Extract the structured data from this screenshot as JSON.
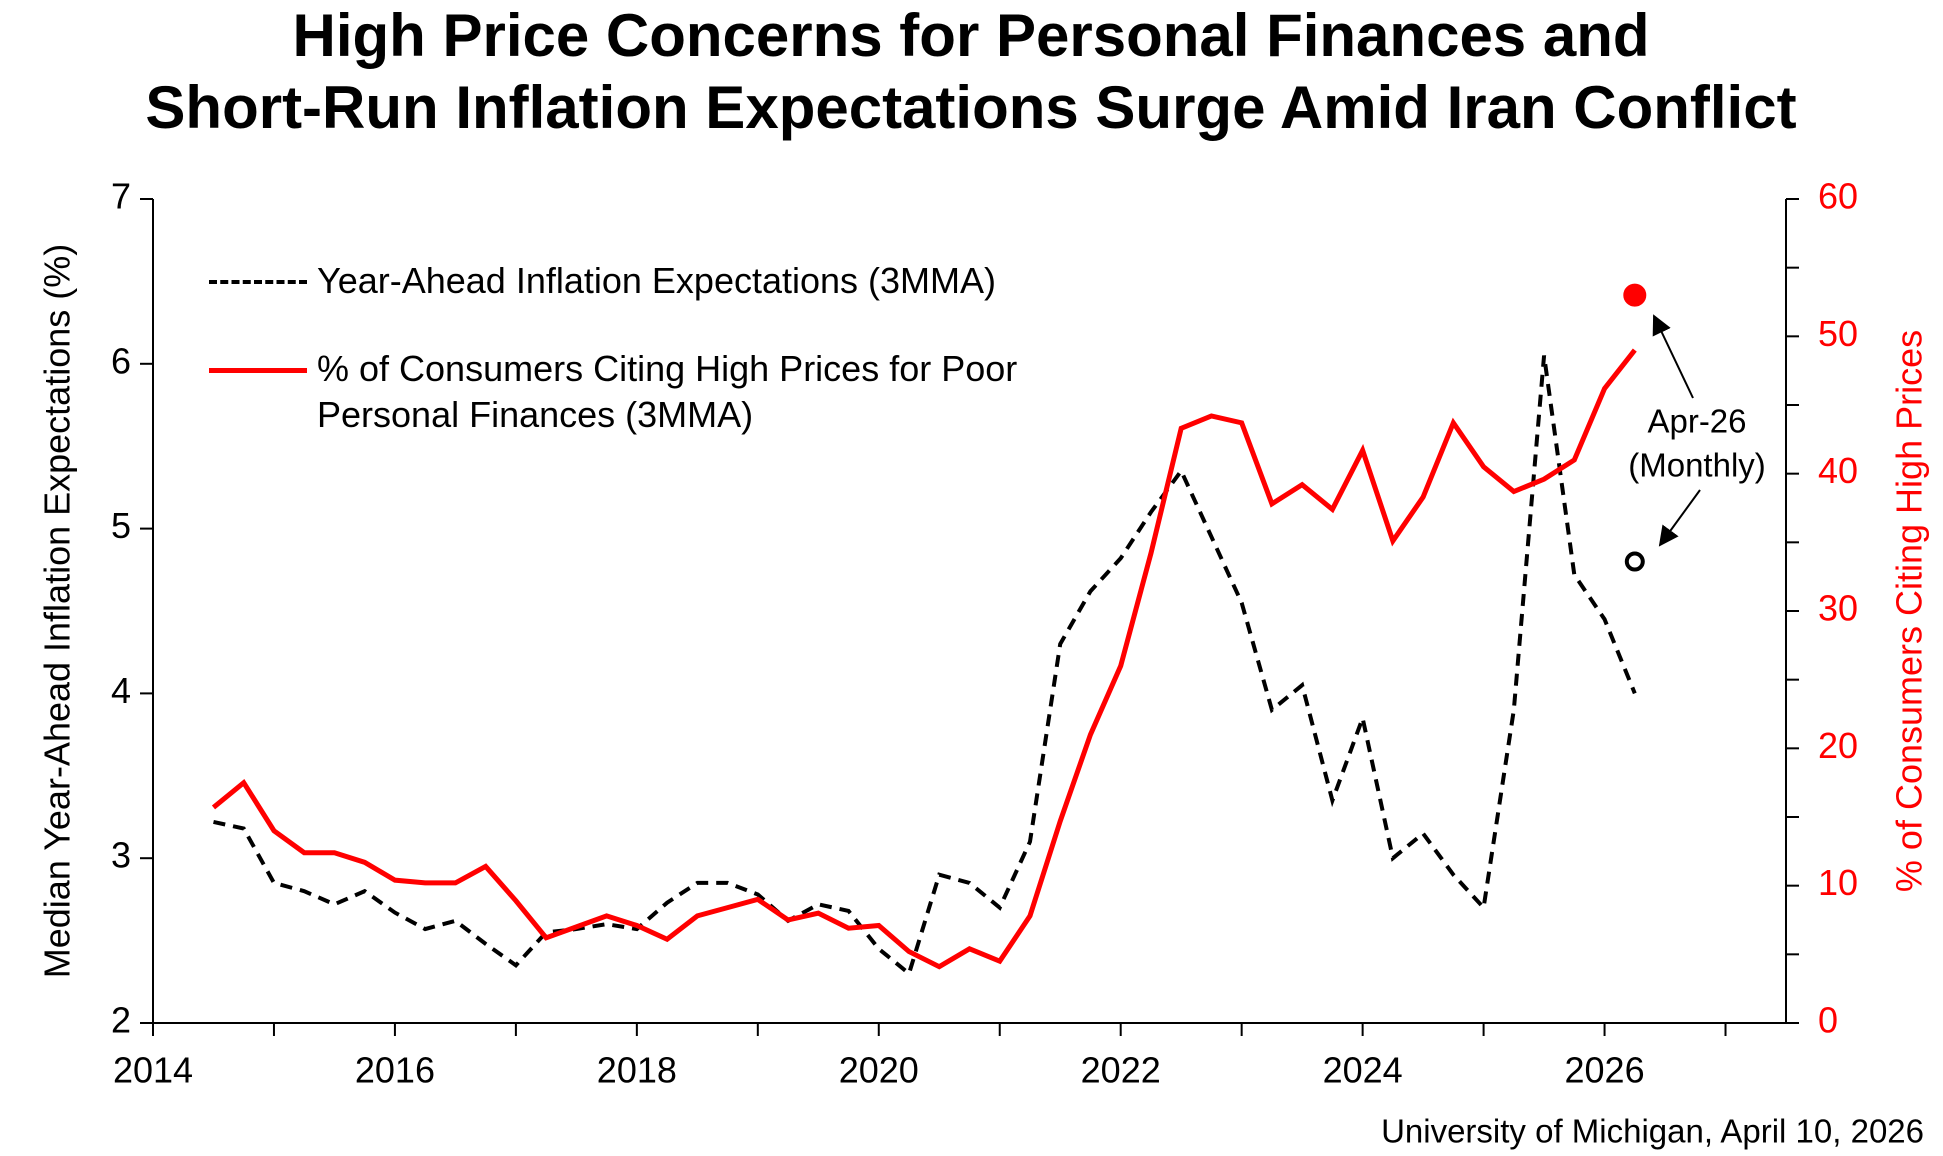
{
  "chart_data": {
    "type": "line",
    "title": [
      "High Price Concerns for Personal Finances and",
      "Short-Run Inflation Expectations Surge Amid Iran Conflict"
    ],
    "ylabel": "Median Year-Ahead Inflation Expectations (%)",
    "y2label": "% of Consumers Citing High Prices",
    "source": "University of Michigan, April 10, 2026",
    "xlim": [
      2014,
      2027.5
    ],
    "xticks": [
      2014,
      2016,
      2018,
      2020,
      2022,
      2024,
      2026
    ],
    "xminorticks": [
      2015,
      2017,
      2019,
      2021,
      2023,
      2025,
      2027
    ],
    "ylim": [
      2,
      7
    ],
    "yticks": [
      2,
      3,
      4,
      5,
      6,
      7
    ],
    "y2lim": [
      0,
      60
    ],
    "y2ticks": [
      0,
      10,
      20,
      30,
      40,
      50,
      60
    ],
    "y2minorticks": [
      5,
      15,
      25,
      35,
      45,
      55
    ],
    "x": [
      2014.5,
      2014.75,
      2015,
      2015.25,
      2015.5,
      2015.75,
      2016,
      2016.25,
      2016.5,
      2016.75,
      2017,
      2017.25,
      2017.5,
      2017.75,
      2018,
      2018.25,
      2018.5,
      2018.75,
      2019,
      2019.25,
      2019.5,
      2019.75,
      2020,
      2020.25,
      2020.5,
      2020.75,
      2021,
      2021.25,
      2021.5,
      2021.75,
      2022,
      2022.25,
      2022.5,
      2022.75,
      2023,
      2023.25,
      2023.5,
      2023.75,
      2024,
      2024.25,
      2024.5,
      2024.75,
      2025,
      2025.25,
      2025.5,
      2025.75,
      2026,
      2026.25
    ],
    "series": [
      {
        "name": "Year-Ahead Inflation Expectations (3MMA)",
        "color": "#000000",
        "dashed": true,
        "axis": "y",
        "values": [
          3.22,
          3.18,
          2.85,
          2.8,
          2.72,
          2.8,
          2.67,
          2.57,
          2.62,
          2.48,
          2.35,
          2.55,
          2.57,
          2.6,
          2.57,
          2.73,
          2.85,
          2.85,
          2.78,
          2.62,
          2.72,
          2.68,
          2.45,
          2.3,
          2.9,
          2.85,
          2.7,
          3.1,
          4.3,
          4.62,
          4.82,
          5.1,
          5.35,
          4.95,
          4.55,
          3.9,
          4.05,
          3.35,
          3.85,
          3.0,
          3.15,
          2.9,
          2.7,
          3.9,
          6.05,
          4.72,
          4.45,
          4.0
        ]
      },
      {
        "name": "% of Consumers Citing High Prices for Poor Personal Finances (3MMA)",
        "color": "#ff0000",
        "dashed": false,
        "axis": "y2",
        "values": [
          15.7,
          17.5,
          14,
          12.4,
          12.4,
          11.7,
          10.4,
          10.2,
          10.2,
          11.4,
          8.9,
          6.2,
          7,
          7.8,
          7.1,
          6.1,
          7.8,
          8.4,
          9,
          7.5,
          8,
          6.9,
          7.1,
          5.2,
          4.1,
          5.4,
          4.5,
          7.8,
          14.7,
          21,
          26,
          34.2,
          43.3,
          44.2,
          43.7,
          37.8,
          39.2,
          37.4,
          41.7,
          35.1,
          38.3,
          43.7,
          40.5,
          38.7,
          39.6,
          41,
          46.2,
          49
        ]
      }
    ],
    "markers": [
      {
        "x": 2026.25,
        "value": 53,
        "axis": "y2",
        "color": "#ff0000",
        "filled": true
      },
      {
        "x": 2026.25,
        "value": 4.8,
        "axis": "y",
        "color": "#000000",
        "filled": false
      }
    ],
    "annotation": [
      "Apr-26",
      "(Monthly)"
    ]
  }
}
